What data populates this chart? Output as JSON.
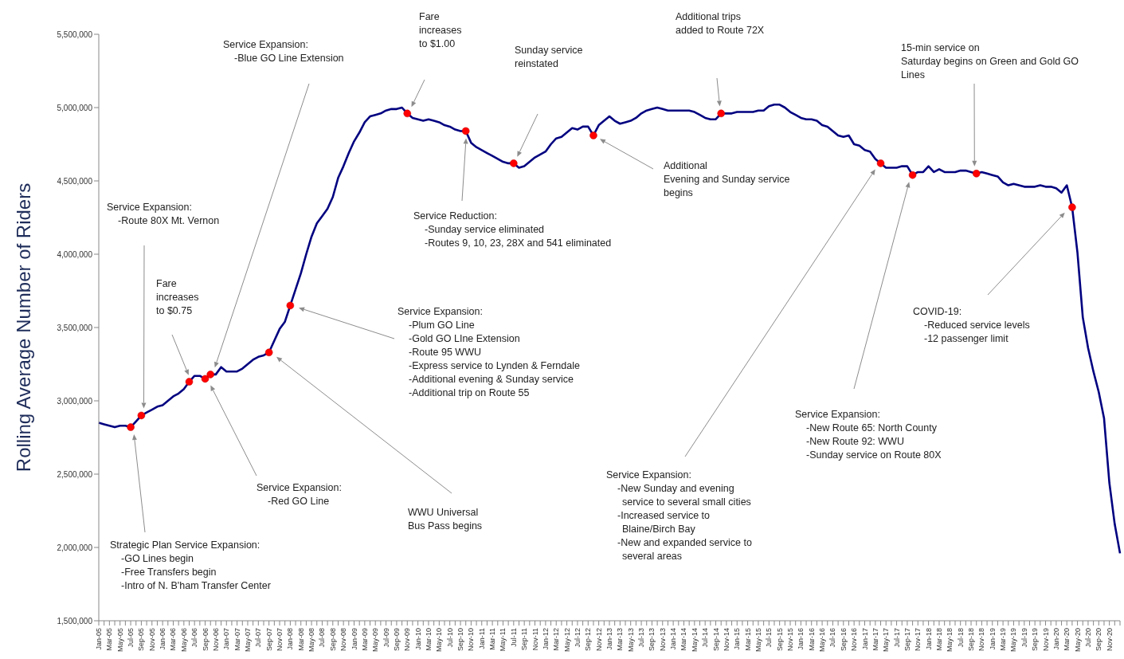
{
  "chart_data": {
    "type": "line",
    "ylabel": "Rolling Average Number of Riders",
    "categories": [
      "Jan-05",
      null,
      "Mar-05",
      null,
      "May-05",
      null,
      "Jul-05",
      null,
      "Sep-05",
      null,
      "Nov-05",
      null,
      "Jan-06",
      null,
      "Mar-06",
      null,
      "May-06",
      null,
      "Jul-06",
      null,
      "Sep-06",
      null,
      "Nov-06",
      null,
      "Jan-07",
      null,
      "Mar-07",
      null,
      "May-07",
      null,
      "Jul-07",
      null,
      "Sep-07",
      null,
      "Nov-07",
      null,
      "Jan-08",
      null,
      "Mar-08",
      null,
      "May-08",
      null,
      "Jul-08",
      null,
      "Sep-08",
      null,
      "Nov-08",
      null,
      "Jan-09",
      null,
      "Mar-09",
      null,
      "May-09",
      null,
      "Jul-09",
      null,
      "Sep-09",
      null,
      "Nov-09",
      null,
      "Jan-10",
      null,
      "Mar-10",
      null,
      "May-10",
      null,
      "Jul-10",
      null,
      "Sep-10",
      null,
      "Nov-10",
      null,
      "Jan-11",
      null,
      "Mar-11",
      null,
      "May-11",
      null,
      "Jul-11",
      null,
      "Sep-11",
      null,
      "Nov-11",
      null,
      "Jan-12",
      null,
      "Mar-12",
      null,
      "May-12",
      null,
      "Jul-12",
      null,
      "Sep-12",
      null,
      "Nov-12",
      null,
      "Jan-13",
      null,
      "Mar-13",
      null,
      "May-13",
      null,
      "Jul-13",
      null,
      "Sep-13",
      null,
      "Nov-13",
      null,
      "Jan-14",
      null,
      "Mar-14",
      null,
      "May-14",
      null,
      "Jul-14",
      null,
      "Sep-14",
      null,
      "Nov-14",
      null,
      "Jan-15",
      null,
      "Mar-15",
      null,
      "May-15",
      null,
      "Jul-15",
      null,
      "Sep-15",
      null,
      "Nov-15",
      null,
      "Jan-16",
      null,
      "Mar-16",
      null,
      "May-16",
      null,
      "Jul-16",
      null,
      "Sep-16",
      null,
      "Nov-16",
      null,
      "Jan-17",
      null,
      "Mar-17",
      null,
      "May-17",
      null,
      "Jul-17",
      null,
      "Sep-17",
      null,
      "Nov-17",
      null,
      "Jan-18",
      null,
      "Mar-18",
      null,
      "May-18",
      null,
      "Jul-18",
      null,
      "Sep-18",
      null,
      "Nov-18",
      null,
      "Jan-19",
      null,
      "Mar-19",
      null,
      "May-19",
      null,
      "Jul-19",
      null,
      "Sep-19",
      null,
      "Nov-19",
      null,
      "Jan-20",
      null,
      "Mar-20",
      null,
      "May-20",
      null,
      "Jul-20",
      null,
      "Sep-20",
      null,
      "Nov-20",
      null,
      null
    ],
    "series": [
      {
        "type": "line",
        "color": "#000080",
        "marker": "none",
        "line_style": "solid",
        "values": [
          2850000,
          2840000,
          2830000,
          2820000,
          2830000,
          2830000,
          2820000,
          2860000,
          2900000,
          2920000,
          2940000,
          2960000,
          2970000,
          3000000,
          3030000,
          3050000,
          3080000,
          3130000,
          3170000,
          3170000,
          3150000,
          3180000,
          3180000,
          3230000,
          3200000,
          3200000,
          3200000,
          3220000,
          3250000,
          3280000,
          3300000,
          3310000,
          3330000,
          3410000,
          3490000,
          3540000,
          3650000,
          3760000,
          3870000,
          4000000,
          4120000,
          4210000,
          4260000,
          4310000,
          4390000,
          4520000,
          4600000,
          4690000,
          4770000,
          4830000,
          4900000,
          4940000,
          4950000,
          4960000,
          4980000,
          4990000,
          4990000,
          5000000,
          4960000,
          4930000,
          4920000,
          4910000,
          4920000,
          4910000,
          4900000,
          4880000,
          4870000,
          4850000,
          4840000,
          4840000,
          4760000,
          4730000,
          4710000,
          4690000,
          4670000,
          4650000,
          4630000,
          4620000,
          4620000,
          4590000,
          4600000,
          4630000,
          4660000,
          4680000,
          4700000,
          4750000,
          4790000,
          4800000,
          4830000,
          4860000,
          4850000,
          4870000,
          4870000,
          4810000,
          4880000,
          4910000,
          4940000,
          4910000,
          4890000,
          4900000,
          4910000,
          4930000,
          4960000,
          4980000,
          4990000,
          5000000,
          4990000,
          4980000,
          4980000,
          4980000,
          4980000,
          4980000,
          4970000,
          4950000,
          4930000,
          4920000,
          4920000,
          4960000,
          4960000,
          4960000,
          4970000,
          4970000,
          4970000,
          4970000,
          4980000,
          4980000,
          5010000,
          5020000,
          5020000,
          5000000,
          4970000,
          4950000,
          4930000,
          4920000,
          4920000,
          4910000,
          4880000,
          4870000,
          4840000,
          4810000,
          4800000,
          4810000,
          4750000,
          4740000,
          4710000,
          4700000,
          4650000,
          4620000,
          4590000,
          4590000,
          4590000,
          4600000,
          4600000,
          4540000,
          4560000,
          4560000,
          4600000,
          4560000,
          4580000,
          4560000,
          4560000,
          4560000,
          4570000,
          4570000,
          4560000,
          4550000,
          4560000,
          4550000,
          4540000,
          4530000,
          4490000,
          4470000,
          4480000,
          4470000,
          4460000,
          4460000,
          4460000,
          4470000,
          4460000,
          4460000,
          4450000,
          4420000,
          4470000,
          4320000,
          4010000,
          3570000,
          3360000,
          3200000,
          3060000,
          2880000,
          2440000,
          2160000,
          1960000
        ]
      },
      {
        "type": "scatter",
        "color": "#ff0000",
        "marker": "circle",
        "values": [
          null,
          null,
          null,
          null,
          null,
          null,
          2820000,
          null,
          2900000,
          null,
          null,
          null,
          null,
          null,
          null,
          null,
          null,
          3130000,
          null,
          null,
          3150000,
          3180000,
          null,
          null,
          null,
          null,
          null,
          null,
          null,
          null,
          null,
          null,
          3330000,
          null,
          null,
          null,
          3650000,
          null,
          null,
          null,
          null,
          null,
          null,
          null,
          null,
          null,
          null,
          null,
          null,
          null,
          null,
          null,
          null,
          null,
          null,
          null,
          null,
          null,
          4960000,
          null,
          null,
          null,
          null,
          null,
          null,
          null,
          null,
          null,
          null,
          4840000,
          null,
          null,
          null,
          null,
          null,
          null,
          null,
          null,
          4620000,
          null,
          null,
          null,
          null,
          null,
          null,
          null,
          null,
          null,
          null,
          null,
          null,
          null,
          null,
          4810000,
          null,
          null,
          null,
          null,
          null,
          null,
          null,
          null,
          null,
          null,
          null,
          null,
          null,
          null,
          null,
          null,
          null,
          null,
          null,
          null,
          null,
          null,
          null,
          4960000,
          null,
          null,
          null,
          null,
          null,
          null,
          null,
          null,
          null,
          null,
          null,
          null,
          null,
          null,
          null,
          null,
          null,
          null,
          null,
          null,
          null,
          null,
          null,
          null,
          null,
          null,
          null,
          null,
          null,
          4620000,
          null,
          null,
          null,
          null,
          null,
          4540000,
          null,
          null,
          null,
          null,
          null,
          null,
          null,
          null,
          null,
          null,
          null,
          4550000,
          null,
          null,
          null,
          null,
          null,
          null,
          null,
          null,
          null,
          null,
          null,
          null,
          null,
          null,
          null,
          null,
          null,
          4320000,
          null,
          null,
          null,
          null,
          null,
          null,
          null,
          null,
          null
        ]
      }
    ],
    "ylim": [
      1500000,
      5500000
    ],
    "yticks": [
      {
        "value": 1500000,
        "label": "1,500,000"
      },
      {
        "value": 2000000,
        "label": "2,000,000"
      },
      {
        "value": 2500000,
        "label": "2,500,000"
      },
      {
        "value": 3000000,
        "label": "3,000,000"
      },
      {
        "value": 3500000,
        "label": "3,500,000"
      },
      {
        "value": 4000000,
        "label": "4,000,000"
      },
      {
        "value": 4500000,
        "label": "4,500,000"
      },
      {
        "value": 5000000,
        "label": "5,000,000"
      },
      {
        "value": 5500000,
        "label": "5,500,000"
      }
    ],
    "annotations": [
      "Strategic Plan Service Expansion:\n-GO Lines begin\n-Free Transfers begin\n-Intro of N. B'ham Transfer Center",
      "Service Expansion:\n-Route 80X Mt. Vernon",
      "Fare\nincreases\nto $0.75",
      "Service Expansion:\n-Blue GO Line Extension",
      "Service Expansion:\n-Red GO Line",
      "WWU Universal\nBus Pass begins",
      "Service Expansion:\n-Plum GO Line\n-Gold GO LIne Extension\n-Route 95 WWU\n-Express service to Lynden & Ferndale\n-Additional evening & Sunday service\n-Additional trip on Route 55",
      "Fare\nincreases\nto $1.00",
      "Service Reduction:\n-Sunday service eliminated\n-Routes 9, 10, 23, 28X and 541 eliminated",
      "Sunday service\nreinstated",
      "Additional\nEvening and Sunday service\nbegins",
      "Additional trips\nadded to Route 72X",
      "Service Expansion:\n-New Sunday and evening\nservice to several small cities\n-Increased service to\nBlaine/Birch Bay\n-New and expanded service to\nseveral areas",
      "Service Expansion:\n-New Route 65: North County\n-New Route 92: WWU\n-Sunday service on Route 80X",
      "15-min service on\nSaturday begins on Green and Gold GO\nLines",
      "COVID-19:\n-Reduced service levels\n-12 passenger limit"
    ]
  }
}
